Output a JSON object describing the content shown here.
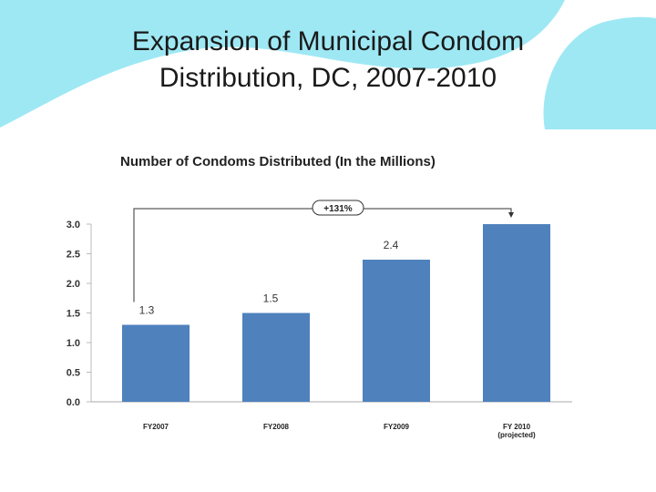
{
  "slide": {
    "title_line1": "Expansion of Municipal Condom",
    "title_line2": "Distribution, DC, 2007-2010"
  },
  "colors": {
    "bar": "#4F81BD",
    "decor": "#9EE8F4"
  },
  "chart_data": {
    "type": "bar",
    "title": "Number of Condoms  Distributed  (In the Millions)",
    "categories": [
      "FY2007",
      "FY2008",
      "FY2009",
      "FY 2010"
    ],
    "category_sublabels": [
      "",
      "",
      "",
      "(projected)"
    ],
    "values": [
      1.3,
      1.5,
      2.4,
      3.0
    ],
    "data_labels": [
      "1.3",
      "1.5",
      "2.4",
      ""
    ],
    "yticks": [
      "0.0",
      "0.5",
      "1.0",
      "1.5",
      "2.0",
      "2.5",
      "3.0"
    ],
    "ylim": [
      0,
      3.0
    ],
    "xlabel": "",
    "ylabel": "",
    "annotation": {
      "text": "+131%",
      "from_category": "FY2007",
      "to_category": "FY 2010"
    }
  }
}
